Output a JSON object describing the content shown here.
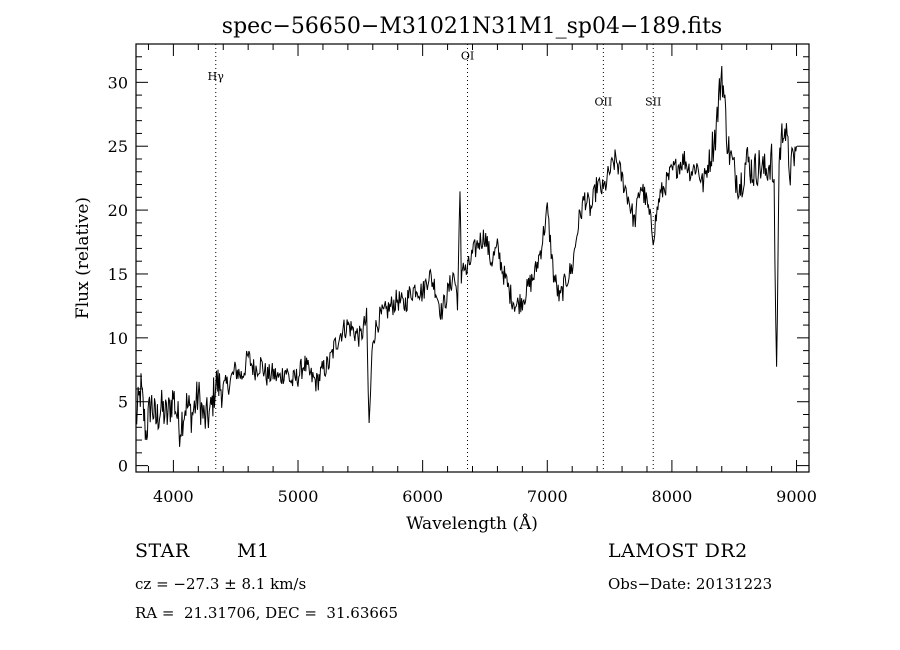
{
  "chart_data": {
    "type": "line",
    "title": "spec−56650−M31021N31M1_sp04−189.fits",
    "xlabel": "Wavelength (Å)",
    "ylabel": "Flux (relative)",
    "xlim": [
      3700,
      9100
    ],
    "ylim": [
      -0.5,
      33
    ],
    "xticks": [
      4000,
      5000,
      6000,
      7000,
      8000,
      9000
    ],
    "yticks": [
      0,
      5,
      10,
      15,
      20,
      25,
      30
    ],
    "grid": false,
    "lines": [
      {
        "label": "Hγ",
        "x": 4340,
        "label_y": 30.2
      },
      {
        "label": "OI",
        "x": 6360,
        "label_y": 31.8
      },
      {
        "label": "OII",
        "x": 7450,
        "label_y": 28.2
      },
      {
        "label": "SII",
        "x": 7850,
        "label_y": 28.2
      }
    ],
    "series": [
      {
        "x": [
          3700,
          3740,
          3780,
          3820,
          3860,
          3900,
          3950,
          4000,
          4050,
          4100,
          4150,
          4200,
          4250,
          4300,
          4340,
          4400,
          4450,
          4500,
          4550,
          4600,
          4650,
          4700,
          4750,
          4800,
          4850,
          4900,
          4950,
          5000,
          5050,
          5100,
          5150,
          5200,
          5250,
          5300,
          5350,
          5400,
          5450,
          5500,
          5550,
          5570,
          5600,
          5650,
          5700,
          5750,
          5800,
          5850,
          5900,
          5950,
          6000,
          6050,
          6100,
          6150,
          6200,
          6250,
          6280,
          6300,
          6310,
          6320,
          6350,
          6400,
          6450,
          6500,
          6550,
          6600,
          6650,
          6700,
          6750,
          6800,
          6850,
          6900,
          6950,
          7000,
          7050,
          7100,
          7150,
          7200,
          7250,
          7300,
          7350,
          7400,
          7450,
          7500,
          7550,
          7600,
          7650,
          7700,
          7750,
          7800,
          7850,
          7900,
          7950,
          8000,
          8050,
          8100,
          8150,
          8200,
          8250,
          8300,
          8350,
          8400,
          8450,
          8500,
          8550,
          8600,
          8650,
          8700,
          8750,
          8800,
          8820,
          8840,
          8860,
          8900,
          8950,
          9000
        ],
        "values": [
          3.5,
          6.0,
          2.5,
          5.0,
          3.5,
          4.5,
          3.8,
          5.5,
          3.0,
          4.8,
          4.0,
          5.5,
          3.5,
          4.2,
          6.5,
          6.0,
          6.5,
          7.5,
          7.0,
          8.5,
          7.5,
          8.0,
          7.0,
          7.2,
          6.8,
          7.5,
          6.5,
          7.0,
          8.0,
          7.0,
          6.5,
          7.5,
          8.0,
          9.5,
          10.5,
          11.0,
          10.5,
          10.0,
          11.5,
          3.0,
          10.0,
          11.5,
          12.0,
          12.5,
          13.0,
          12.5,
          13.5,
          14.0,
          13.5,
          15.0,
          14.0,
          12.0,
          13.5,
          15.0,
          13.0,
          21.0,
          14.5,
          16.0,
          15.0,
          16.5,
          17.5,
          18.0,
          16.0,
          17.0,
          15.0,
          13.5,
          12.5,
          13.0,
          14.0,
          15.0,
          17.0,
          20.0,
          15.0,
          13.0,
          14.5,
          15.5,
          19.0,
          21.0,
          20.0,
          22.0,
          21.5,
          23.0,
          24.0,
          22.5,
          21.0,
          19.0,
          22.0,
          20.5,
          18.0,
          21.0,
          22.0,
          23.0,
          23.5,
          24.0,
          23.0,
          23.5,
          22.0,
          24.0,
          26.0,
          31.0,
          25.0,
          23.0,
          22.0,
          24.0,
          23.0,
          23.5,
          23.0,
          24.0,
          21.0,
          7.0,
          24.0,
          27.0,
          23.0,
          25.0
        ]
      }
    ]
  },
  "info": {
    "class": "STAR",
    "subclass": "M1",
    "survey": "LAMOST DR2",
    "cz": "cz = −27.3 ± 8.1 km/s",
    "obs_date": "Obs−Date: 20131223",
    "radec": "RA =  21.31706, DEC =  31.63665"
  }
}
